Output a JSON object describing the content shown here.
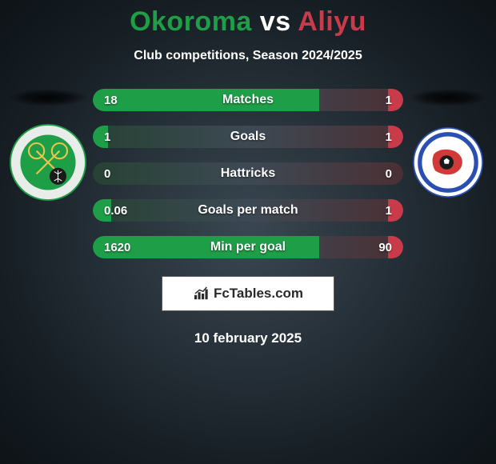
{
  "title": {
    "player1": "Okoroma",
    "vs": " vs ",
    "player2": "Aliyu",
    "player1_color": "#1f9e48",
    "player2_color": "#c93a4a"
  },
  "subtitle": "Club competitions, Season 2024/2025",
  "colors": {
    "left_fill": "#1f9e48",
    "right_fill": "#c93a4a",
    "left_faint": "#274234",
    "right_faint": "#4a3034",
    "neutral_bg": "#3d4954",
    "text": "#ffffff"
  },
  "bars": [
    {
      "label": "Matches",
      "left_val": "18",
      "right_val": "1",
      "left_pct": 73,
      "right_pct": 5
    },
    {
      "label": "Goals",
      "left_val": "1",
      "right_val": "1",
      "left_pct": 5,
      "right_pct": 5
    },
    {
      "label": "Hattricks",
      "left_val": "0",
      "right_val": "0",
      "left_pct": 0,
      "right_pct": 0
    },
    {
      "label": "Goals per match",
      "left_val": "0.06",
      "right_val": "1",
      "left_pct": 6,
      "right_pct": 5
    },
    {
      "label": "Min per goal",
      "left_val": "1620",
      "right_val": "90",
      "left_pct": 73,
      "right_pct": 5
    }
  ],
  "brand": "FcTables.com",
  "date": "10 february 2025",
  "logos": {
    "left": {
      "outer_bg": "#e8ede9",
      "ring_color": "#1f9e48",
      "inner_bg": "#1f9e48",
      "accent": "#e8c64a"
    },
    "right": {
      "outer_bg": "#ffffff",
      "ring_color": "#2a4fb0",
      "inner_bg": "#ffffff",
      "map_color": "#d23a3a",
      "ball_color": "#1a1a1a"
    }
  }
}
